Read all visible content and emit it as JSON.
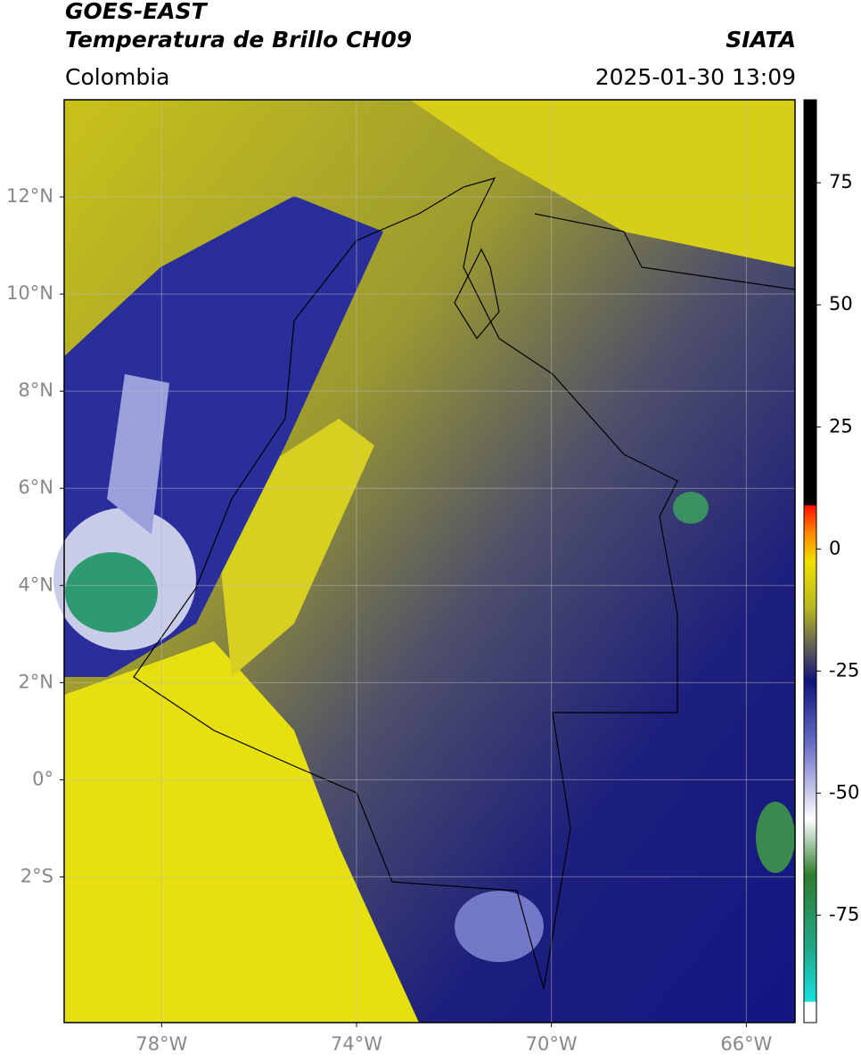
{
  "header": {
    "title": "GOES-EAST",
    "subtitle": "Temperatura de Brillo CH09",
    "source": "SIATA",
    "region": "Colombia",
    "timestamp": "2025-01-30 13:09"
  },
  "map": {
    "xlim": [
      -80,
      -65
    ],
    "ylim": [
      -5,
      14
    ],
    "xticks": [
      {
        "value": -78,
        "label": "78°W"
      },
      {
        "value": -74,
        "label": "74°W"
      },
      {
        "value": -70,
        "label": "70°W"
      },
      {
        "value": -66,
        "label": "66°W"
      }
    ],
    "yticks": [
      {
        "value": 12,
        "label": "12°N"
      },
      {
        "value": 10,
        "label": "10°N"
      },
      {
        "value": 8,
        "label": "8°N"
      },
      {
        "value": 6,
        "label": "6°N"
      },
      {
        "value": 4,
        "label": "4°N"
      },
      {
        "value": 2,
        "label": "2°N"
      },
      {
        "value": 0,
        "label": "0°"
      },
      {
        "value": -2,
        "label": "2°S"
      }
    ],
    "grid": true
  },
  "colorbar": {
    "lim": [
      -97,
      92
    ],
    "ticks": [
      75,
      50,
      25,
      0,
      -25,
      -50,
      -75
    ]
  }
}
